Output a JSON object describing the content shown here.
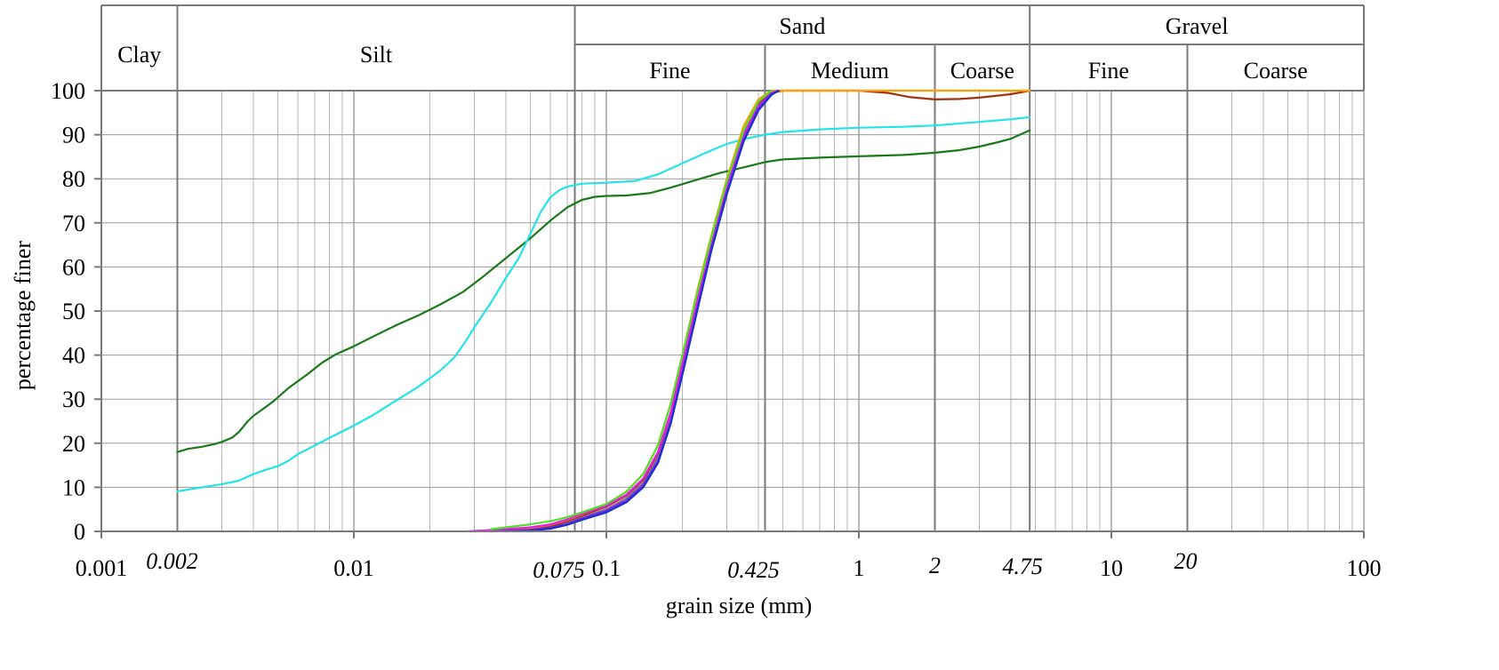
{
  "chart_data": {
    "type": "line",
    "xscale": "log",
    "xlabel": "grain size (mm)",
    "ylabel": "percentage finer",
    "xlim": [
      0.001,
      100
    ],
    "ylim": [
      0,
      100
    ],
    "grid": true,
    "x_ticks": [
      {
        "value": 0.001,
        "label": "0.001",
        "italic": false
      },
      {
        "value": 0.002,
        "label": "0.002",
        "italic": true
      },
      {
        "value": 0.01,
        "label": "0.01",
        "italic": false
      },
      {
        "value": 0.075,
        "label": "0.075",
        "italic": true
      },
      {
        "value": 0.1,
        "label": "0.1",
        "italic": false
      },
      {
        "value": 0.425,
        "label": "0.425",
        "italic": true
      },
      {
        "value": 1,
        "label": "1",
        "italic": false
      },
      {
        "value": 2,
        "label": "2",
        "italic": true
      },
      {
        "value": 4.75,
        "label": "4.75",
        "italic": true
      },
      {
        "value": 10,
        "label": "10",
        "italic": false
      },
      {
        "value": 20,
        "label": "20",
        "italic": true
      },
      {
        "value": 100,
        "label": "100",
        "italic": false
      }
    ],
    "y_ticks": [
      "0",
      "10",
      "20",
      "30",
      "40",
      "50",
      "60",
      "70",
      "80",
      "90",
      "100"
    ],
    "classification": {
      "top_bands": [
        {
          "label": "Clay",
          "from": 0.001,
          "to": 0.002
        },
        {
          "label": "Silt",
          "from": 0.002,
          "to": 0.075
        },
        {
          "label": "Sand",
          "from": 0.075,
          "to": 4.75
        },
        {
          "label": "Gravel",
          "from": 4.75,
          "to": 100
        }
      ],
      "sub_bands": [
        {
          "label": "Fine",
          "from": 0.075,
          "to": 0.425
        },
        {
          "label": "Medium",
          "from": 0.425,
          "to": 2
        },
        {
          "label": "Coarse",
          "from": 2,
          "to": 4.75
        },
        {
          "label": "Fine",
          "from": 4.75,
          "to": 20
        },
        {
          "label": "Coarse",
          "from": 20,
          "to": 100
        }
      ]
    },
    "series": [
      {
        "color": "#1a7a1a",
        "points": [
          [
            0.002,
            18
          ],
          [
            0.0022,
            18.7
          ],
          [
            0.0025,
            19.2
          ],
          [
            0.0028,
            19.8
          ],
          [
            0.003,
            20.3
          ],
          [
            0.0033,
            21.3
          ],
          [
            0.0035,
            22.5
          ],
          [
            0.0038,
            25
          ],
          [
            0.004,
            26.2
          ],
          [
            0.0043,
            27.5
          ],
          [
            0.0048,
            29.5
          ],
          [
            0.0055,
            32.5
          ],
          [
            0.0065,
            35.5
          ],
          [
            0.0075,
            38.3
          ],
          [
            0.0085,
            40.2
          ],
          [
            0.01,
            42
          ],
          [
            0.012,
            44.3
          ],
          [
            0.015,
            47
          ],
          [
            0.018,
            49
          ],
          [
            0.022,
            51.5
          ],
          [
            0.027,
            54.3
          ],
          [
            0.032,
            57.5
          ],
          [
            0.04,
            62
          ],
          [
            0.05,
            66.5
          ],
          [
            0.06,
            70.5
          ],
          [
            0.07,
            73.5
          ],
          [
            0.08,
            75.2
          ],
          [
            0.09,
            75.9
          ],
          [
            0.1,
            76.1
          ],
          [
            0.12,
            76.2
          ],
          [
            0.15,
            76.8
          ],
          [
            0.18,
            78
          ],
          [
            0.22,
            79.5
          ],
          [
            0.28,
            81.3
          ],
          [
            0.35,
            82.6
          ],
          [
            0.425,
            83.8
          ],
          [
            0.5,
            84.4
          ],
          [
            0.7,
            84.8
          ],
          [
            1,
            85.1
          ],
          [
            1.5,
            85.4
          ],
          [
            2,
            85.9
          ],
          [
            2.5,
            86.5
          ],
          [
            3,
            87.3
          ],
          [
            3.5,
            88.2
          ],
          [
            4,
            89.1
          ],
          [
            4.75,
            91
          ]
        ]
      },
      {
        "color": "#22e3e8",
        "points": [
          [
            0.002,
            9.1
          ],
          [
            0.0025,
            10
          ],
          [
            0.003,
            10.7
          ],
          [
            0.0035,
            11.5
          ],
          [
            0.004,
            13
          ],
          [
            0.0045,
            14
          ],
          [
            0.005,
            14.8
          ],
          [
            0.0055,
            16
          ],
          [
            0.006,
            17.5
          ],
          [
            0.007,
            19.5
          ],
          [
            0.008,
            21.2
          ],
          [
            0.01,
            24
          ],
          [
            0.012,
            26.5
          ],
          [
            0.015,
            30
          ],
          [
            0.018,
            32.8
          ],
          [
            0.022,
            36.5
          ],
          [
            0.025,
            39.5
          ],
          [
            0.028,
            43.5
          ],
          [
            0.03,
            46.3
          ],
          [
            0.035,
            52
          ],
          [
            0.04,
            57.5
          ],
          [
            0.045,
            62
          ],
          [
            0.05,
            67.5
          ],
          [
            0.055,
            72.5
          ],
          [
            0.06,
            75.8
          ],
          [
            0.065,
            77.4
          ],
          [
            0.07,
            78.2
          ],
          [
            0.08,
            78.9
          ],
          [
            0.1,
            79.1
          ],
          [
            0.13,
            79.5
          ],
          [
            0.16,
            81
          ],
          [
            0.2,
            83.5
          ],
          [
            0.25,
            86
          ],
          [
            0.3,
            87.9
          ],
          [
            0.35,
            89
          ],
          [
            0.425,
            90
          ],
          [
            0.5,
            90.6
          ],
          [
            0.7,
            91.2
          ],
          [
            1,
            91.6
          ],
          [
            1.5,
            91.8
          ],
          [
            2,
            92.1
          ],
          [
            3,
            92.9
          ],
          [
            4,
            93.5
          ],
          [
            4.75,
            94
          ]
        ]
      },
      {
        "color": "#8c6a8c",
        "points": [
          [
            0.03,
            0
          ],
          [
            0.04,
            0.2
          ],
          [
            0.05,
            0.5
          ],
          [
            0.06,
            1
          ],
          [
            0.07,
            2
          ],
          [
            0.08,
            3.2
          ],
          [
            0.1,
            5
          ],
          [
            0.12,
            7.5
          ],
          [
            0.14,
            11
          ],
          [
            0.16,
            17
          ],
          [
            0.18,
            26
          ],
          [
            0.2,
            37
          ],
          [
            0.23,
            52
          ],
          [
            0.26,
            65
          ],
          [
            0.3,
            78
          ],
          [
            0.35,
            90
          ],
          [
            0.4,
            97
          ],
          [
            0.45,
            100
          ]
        ]
      },
      {
        "color": "#a0330f",
        "points": [
          [
            0.03,
            0
          ],
          [
            0.04,
            0.3
          ],
          [
            0.05,
            0.6
          ],
          [
            0.06,
            1.2
          ],
          [
            0.07,
            2.3
          ],
          [
            0.08,
            3.6
          ],
          [
            0.1,
            5.6
          ],
          [
            0.12,
            8.1
          ],
          [
            0.14,
            11.7
          ],
          [
            0.16,
            17.8
          ],
          [
            0.18,
            27
          ],
          [
            0.2,
            38
          ],
          [
            0.23,
            53
          ],
          [
            0.26,
            66
          ],
          [
            0.3,
            79
          ],
          [
            0.35,
            90.5
          ],
          [
            0.4,
            97
          ],
          [
            0.45,
            99.5
          ],
          [
            0.5,
            100
          ],
          [
            1,
            100
          ],
          [
            1.3,
            99.5
          ],
          [
            1.6,
            98.5
          ],
          [
            2,
            98
          ],
          [
            2.5,
            98.1
          ],
          [
            3,
            98.4
          ],
          [
            4,
            99.2
          ],
          [
            4.75,
            100
          ]
        ]
      },
      {
        "color": "#ff9f00",
        "points": [
          [
            0.035,
            0
          ],
          [
            0.04,
            0.3
          ],
          [
            0.05,
            0.8
          ],
          [
            0.06,
            1.5
          ],
          [
            0.07,
            2.6
          ],
          [
            0.08,
            3.9
          ],
          [
            0.1,
            6
          ],
          [
            0.12,
            9
          ],
          [
            0.14,
            13
          ],
          [
            0.16,
            19.5
          ],
          [
            0.18,
            29
          ],
          [
            0.2,
            40
          ],
          [
            0.23,
            55
          ],
          [
            0.26,
            67
          ],
          [
            0.3,
            80
          ],
          [
            0.35,
            92
          ],
          [
            0.4,
            98
          ],
          [
            0.45,
            100
          ],
          [
            1,
            100
          ],
          [
            2,
            100
          ],
          [
            4.75,
            100
          ]
        ]
      },
      {
        "color": "#e81ae8",
        "points": [
          [
            0.028,
            0
          ],
          [
            0.035,
            0.3
          ],
          [
            0.04,
            0.5
          ],
          [
            0.05,
            0.9
          ],
          [
            0.06,
            1.6
          ],
          [
            0.07,
            2.7
          ],
          [
            0.08,
            4
          ],
          [
            0.1,
            5.8
          ],
          [
            0.12,
            8.3
          ],
          [
            0.14,
            12
          ],
          [
            0.16,
            18
          ],
          [
            0.18,
            27
          ],
          [
            0.2,
            38
          ],
          [
            0.23,
            53
          ],
          [
            0.26,
            65.5
          ],
          [
            0.3,
            78.5
          ],
          [
            0.35,
            90
          ],
          [
            0.4,
            96.5
          ],
          [
            0.45,
            99.5
          ],
          [
            0.48,
            100
          ]
        ]
      },
      {
        "color": "#6a2ae8",
        "points": [
          [
            0.035,
            0
          ],
          [
            0.05,
            0.3
          ],
          [
            0.06,
            0.8
          ],
          [
            0.07,
            1.7
          ],
          [
            0.08,
            2.9
          ],
          [
            0.1,
            4.7
          ],
          [
            0.12,
            7
          ],
          [
            0.14,
            10.5
          ],
          [
            0.16,
            16
          ],
          [
            0.18,
            25
          ],
          [
            0.2,
            36
          ],
          [
            0.23,
            51
          ],
          [
            0.26,
            64
          ],
          [
            0.3,
            77
          ],
          [
            0.35,
            89
          ],
          [
            0.4,
            96
          ],
          [
            0.45,
            99.3
          ],
          [
            0.48,
            100
          ]
        ]
      },
      {
        "color": "#1f2fd0",
        "points": [
          [
            0.04,
            0
          ],
          [
            0.05,
            0.2
          ],
          [
            0.06,
            0.6
          ],
          [
            0.07,
            1.5
          ],
          [
            0.08,
            2.6
          ],
          [
            0.1,
            4.3
          ],
          [
            0.12,
            6.6
          ],
          [
            0.14,
            10
          ],
          [
            0.16,
            15.5
          ],
          [
            0.18,
            24.5
          ],
          [
            0.2,
            35.5
          ],
          [
            0.23,
            50.5
          ],
          [
            0.26,
            63.5
          ],
          [
            0.3,
            76.5
          ],
          [
            0.35,
            88.5
          ],
          [
            0.4,
            95.5
          ],
          [
            0.45,
            99
          ],
          [
            0.48,
            100
          ]
        ]
      },
      {
        "color": "#4fe02a",
        "points": [
          [
            0.035,
            0.5
          ],
          [
            0.04,
            0.9
          ],
          [
            0.05,
            1.6
          ],
          [
            0.06,
            2.3
          ],
          [
            0.07,
            3.2
          ],
          [
            0.08,
            4.3
          ],
          [
            0.1,
            6.2
          ],
          [
            0.12,
            9
          ],
          [
            0.14,
            13
          ],
          [
            0.16,
            19.5
          ],
          [
            0.18,
            29
          ],
          [
            0.2,
            40
          ],
          [
            0.23,
            54.5
          ],
          [
            0.26,
            66.5
          ],
          [
            0.3,
            79.5
          ],
          [
            0.35,
            91
          ],
          [
            0.4,
            97.5
          ],
          [
            0.45,
            100
          ]
        ]
      }
    ]
  }
}
